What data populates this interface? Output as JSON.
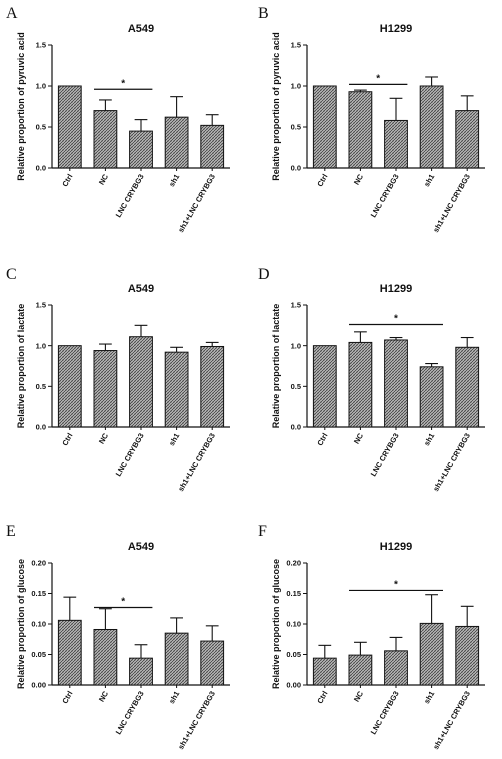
{
  "chart_data": [
    {
      "panel": "A",
      "type": "bar",
      "title": "A549",
      "ylabel": "Relative proportion of pyruvic acid",
      "categories": [
        "Ctrl",
        "NC",
        "LNC CRYBG3",
        "sh1",
        "sh1+LNC CRYBG3"
      ],
      "values": [
        1.0,
        0.7,
        0.45,
        0.62,
        0.52
      ],
      "errors": [
        0,
        0.13,
        0.14,
        0.25,
        0.13
      ],
      "ylim": [
        0,
        1.5
      ],
      "yticks": [
        "0.0",
        "0.5",
        "1.0",
        "1.5"
      ],
      "significance": [
        {
          "from": 1,
          "to": 2,
          "label": "*",
          "y": 0.96
        }
      ]
    },
    {
      "panel": "B",
      "type": "bar",
      "title": "H1299",
      "ylabel": "Relative proportion of pyruvic acid",
      "categories": [
        "Ctrl",
        "NC",
        "LNC CRYBG3",
        "sh1",
        "sh1+LNC CRYBG3"
      ],
      "values": [
        1.0,
        0.93,
        0.58,
        1.0,
        0.7
      ],
      "errors": [
        0,
        0.02,
        0.27,
        0.11,
        0.18
      ],
      "ylim": [
        0,
        1.5
      ],
      "yticks": [
        "0.0",
        "0.5",
        "1.0",
        "1.5"
      ],
      "significance": [
        {
          "from": 1,
          "to": 2,
          "label": "*",
          "y": 1.02
        }
      ]
    },
    {
      "panel": "C",
      "type": "bar",
      "title": "A549",
      "ylabel": "Relative proportion of lactate",
      "categories": [
        "Ctrl",
        "NC",
        "LNC CRYBG3",
        "sh1",
        "sh1+LNC CRYBG3"
      ],
      "values": [
        1.0,
        0.94,
        1.11,
        0.92,
        0.99
      ],
      "errors": [
        0,
        0.08,
        0.14,
        0.06,
        0.05
      ],
      "ylim": [
        0,
        1.5
      ],
      "yticks": [
        "0.0",
        "0.5",
        "1.0",
        "1.5"
      ],
      "significance": []
    },
    {
      "panel": "D",
      "type": "bar",
      "title": "H1299",
      "ylabel": "Relative proportion of lactate",
      "categories": [
        "Ctrl",
        "NC",
        "LNC CRYBG3",
        "sh1",
        "sh1+LNC CRYBG3"
      ],
      "values": [
        1.0,
        1.04,
        1.07,
        0.74,
        0.98
      ],
      "errors": [
        0,
        0.13,
        0.03,
        0.04,
        0.12
      ],
      "ylim": [
        0,
        1.5
      ],
      "yticks": [
        "0.0",
        "0.5",
        "1.0",
        "1.5"
      ],
      "significance": [
        {
          "from": 1,
          "to": 3,
          "label": "*",
          "y": 1.26
        }
      ]
    },
    {
      "panel": "E",
      "type": "bar",
      "title": "A549",
      "ylabel": "Relative proportion of glucose",
      "categories": [
        "Ctrl",
        "NC",
        "LNC CRYBG3",
        "sh1",
        "sh1+LNC CRYBG3"
      ],
      "values": [
        0.106,
        0.091,
        0.044,
        0.085,
        0.072
      ],
      "errors": [
        0.038,
        0.034,
        0.022,
        0.025,
        0.025
      ],
      "ylim": [
        0,
        0.2
      ],
      "yticks": [
        "0.00",
        "0.05",
        "0.10",
        "0.15",
        "0.20"
      ],
      "significance": [
        {
          "from": 1,
          "to": 2,
          "label": "*",
          "y": 0.127
        }
      ]
    },
    {
      "panel": "F",
      "type": "bar",
      "title": "H1299",
      "ylabel": "Relative proportion of glucose",
      "categories": [
        "Ctrl",
        "NC",
        "LNC CRYBG3",
        "sh1",
        "sh1+LNC CRYBG3"
      ],
      "values": [
        0.044,
        0.049,
        0.056,
        0.101,
        0.096
      ],
      "errors": [
        0.021,
        0.021,
        0.022,
        0.047,
        0.033
      ],
      "ylim": [
        0,
        0.2
      ],
      "yticks": [
        "0.00",
        "0.05",
        "0.10",
        "0.15",
        "0.20"
      ],
      "significance": [
        {
          "from": 1,
          "to": 3,
          "label": "*",
          "y": 0.155
        }
      ]
    }
  ]
}
